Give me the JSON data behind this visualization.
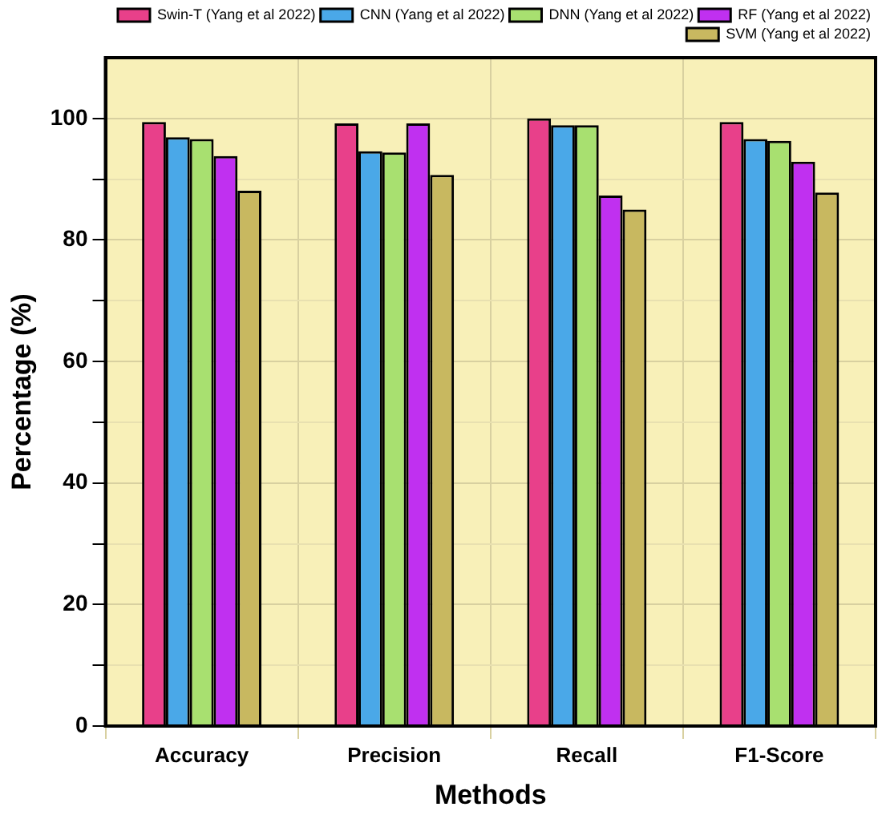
{
  "chart_data": {
    "type": "bar",
    "xlabel": "Methods",
    "ylabel": "Percentage (%)",
    "categories": [
      "Accuracy",
      "Precision",
      "Recall",
      "F1-Score"
    ],
    "series": [
      {
        "name": "Swin-T (Yang et al 2022)",
        "color": "#e8408a",
        "values": [
          99.4,
          99.2,
          100,
          99.4
        ]
      },
      {
        "name": "CNN (Yang et al 2022)",
        "color": "#4aa8e8",
        "values": [
          96.9,
          94.6,
          98.9,
          96.6
        ]
      },
      {
        "name": "DNN (Yang et al 2022)",
        "color": "#a8e070",
        "values": [
          96.6,
          94.4,
          98.9,
          96.3
        ]
      },
      {
        "name": "RF (Yang et al 2022)",
        "color": "#c030f0",
        "values": [
          93.8,
          99.2,
          87.3,
          92.9
        ]
      },
      {
        "name": "SVM (Yang et al 2022)",
        "color": "#c8b860",
        "values": [
          88.1,
          90.7,
          85.0,
          87.8
        ]
      }
    ],
    "ylim": [
      0,
      110
    ],
    "yticks": [
      0,
      {
        "value": 10,
        "label": null
      },
      20,
      {
        "value": 30,
        "label": null
      },
      40,
      {
        "value": 50,
        "label": null
      },
      60,
      {
        "value": 70,
        "label": null
      },
      80,
      {
        "value": 90,
        "label": null
      },
      100
    ],
    "grid": true,
    "legend": "top right"
  }
}
